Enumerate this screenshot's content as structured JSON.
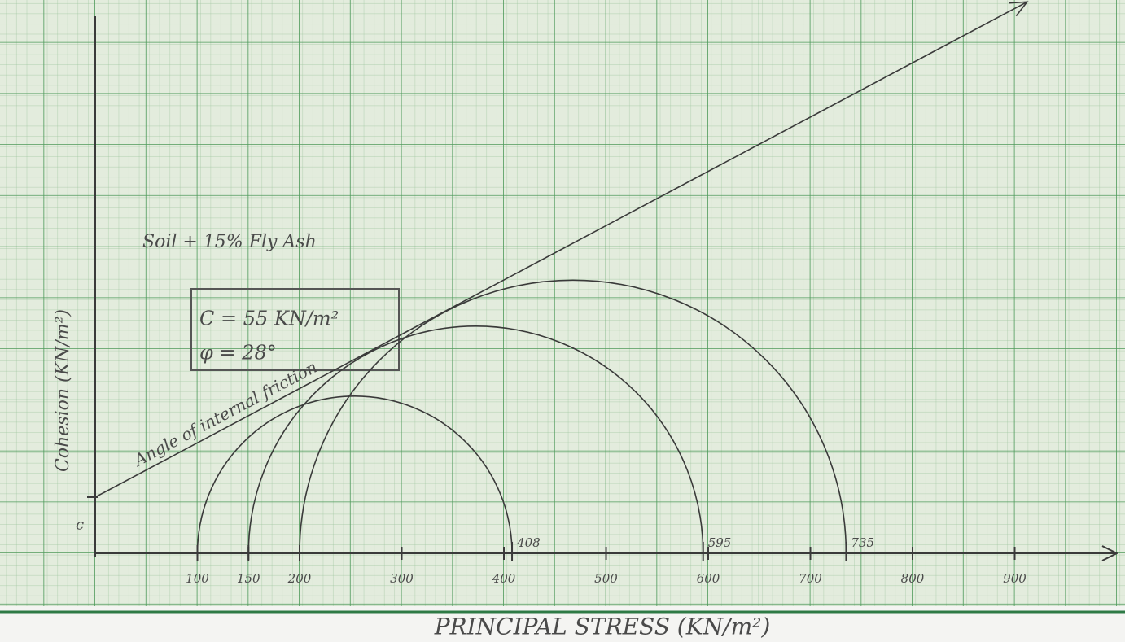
{
  "chart_data": {
    "type": "mohr",
    "title": "Soil + 15% Fly Ash",
    "cohesion": {
      "value": 55,
      "label": "C = 55 KN/m²"
    },
    "phi": {
      "value": 28,
      "label": "φ = 28°"
    },
    "envelope_label": "Angle of internal friction",
    "cohesion_marker": "c",
    "x_label": "PRINCIPAL STRESS (KN/m²)",
    "y_label": "Cohesion (KN/m²)",
    "sigma3": [
      100,
      150,
      200
    ],
    "sigma1": [
      408,
      595,
      735
    ],
    "sigma1_labels": [
      "408",
      "595",
      "735"
    ],
    "xlim": [
      0,
      1000
    ],
    "ylim": [
      0,
      540
    ],
    "xticks": [
      100,
      150,
      200,
      300,
      400,
      500,
      600,
      700,
      800,
      900
    ],
    "color": "#3a3a3a"
  }
}
